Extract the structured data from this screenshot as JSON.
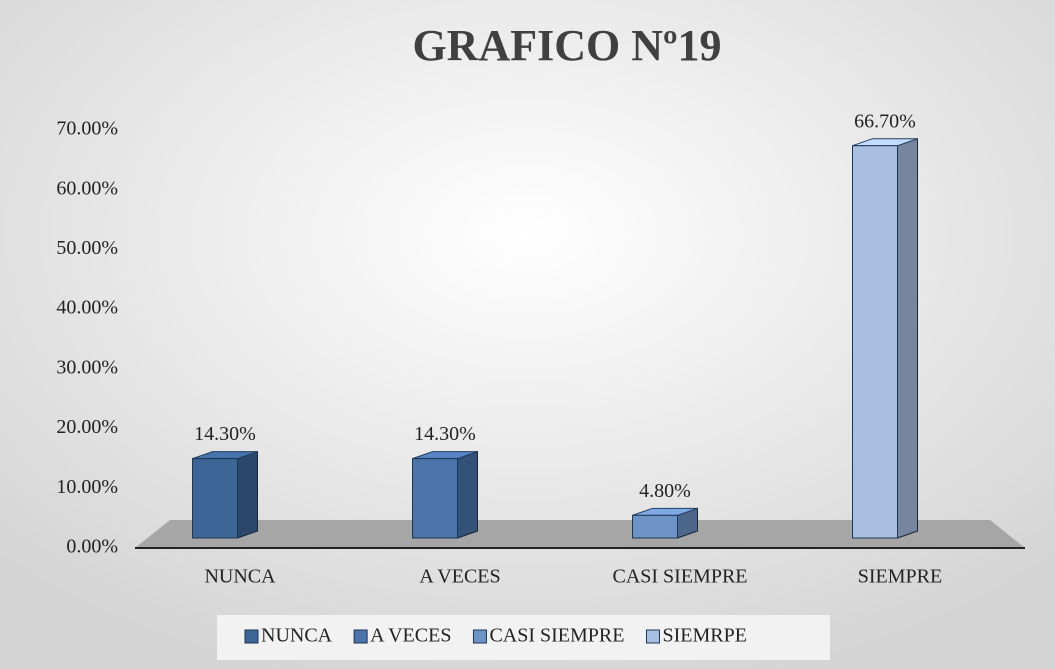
{
  "chart_data": {
    "type": "bar3d",
    "title": "GRAFICO Nº19",
    "categories": [
      "NUNCA",
      "A VECES",
      "CASI SIEMPRE",
      "SIEMPRE"
    ],
    "series": [
      {
        "name": "NUNCA",
        "color": "#3d6596",
        "values": [
          14.3,
          null,
          null,
          null
        ],
        "value_labels": [
          "14.30%",
          null,
          null,
          null
        ]
      },
      {
        "name": "A VECES",
        "color": "#4a74aa",
        "values": [
          null,
          14.3,
          null,
          null
        ],
        "value_labels": [
          null,
          "14.30%",
          null,
          null
        ]
      },
      {
        "name": "CASI SIEMPRE",
        "color": "#6e93c7",
        "values": [
          null,
          null,
          4.8,
          null
        ],
        "value_labels": [
          null,
          null,
          "4.80%",
          null
        ]
      },
      {
        "name": "SIEMRPE",
        "color": "#a9bfe2",
        "values": [
          null,
          null,
          null,
          66.7
        ],
        "value_labels": [
          null,
          null,
          null,
          "66.70%"
        ]
      }
    ],
    "ylim": [
      0,
      70
    ],
    "yticks": [
      {
        "value": 0,
        "label": "0.00%"
      },
      {
        "value": 10,
        "label": "10.00%"
      },
      {
        "value": 20,
        "label": "20.00%"
      },
      {
        "value": 30,
        "label": "30.00%"
      },
      {
        "value": 40,
        "label": "40.00%"
      },
      {
        "value": 50,
        "label": "50.00%"
      },
      {
        "value": 60,
        "label": "60.00%"
      },
      {
        "value": 70,
        "label": "70.00%"
      }
    ],
    "legend": "bottom"
  }
}
